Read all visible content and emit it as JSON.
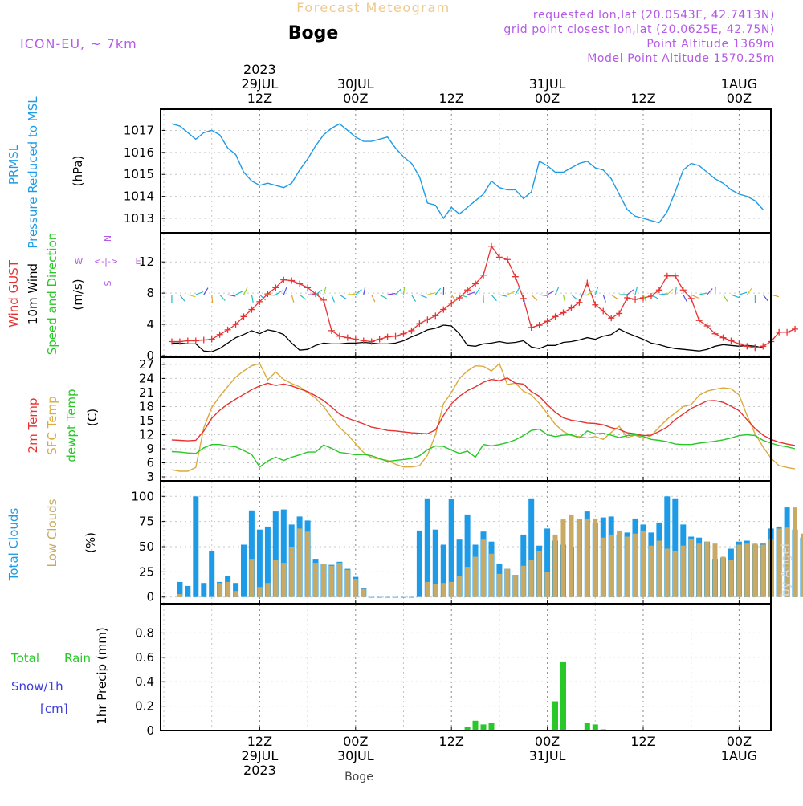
{
  "header": {
    "forecast_title": "Forecast Meteogram",
    "station": "Boge",
    "model": "ICON-EU, ~ 7km",
    "requested": "requested lon,lat (20.0543E, 42.7413N)",
    "grid_point": "grid point closest lon,lat (20.0625E, 42.75N)",
    "point_alt": "Point Altitude 1369m",
    "model_alt": "Model Point Altitude 1570.25m"
  },
  "time_axis": {
    "start": "2023-07-29T01Z",
    "step_hours": 1,
    "end": "2023-08-01T08Z",
    "ticks": [
      {
        "hour": 11,
        "time": "12Z",
        "date": "29JUL",
        "year": "2023"
      },
      {
        "hour": 23,
        "time": "00Z",
        "date": "30JUL",
        "year": ""
      },
      {
        "hour": 35,
        "time": "12Z",
        "date": "",
        "year": ""
      },
      {
        "hour": 47,
        "time": "00Z",
        "date": "31JUL",
        "year": ""
      },
      {
        "hour": 59,
        "time": "12Z",
        "date": "",
        "year": ""
      },
      {
        "hour": 71,
        "time": "00Z",
        "date": "1AUG",
        "year": ""
      }
    ],
    "footer_label": "Boge"
  },
  "labels": {
    "p1": [
      "PRMSL",
      "Pressure Reduced to MSL",
      "(hPa)"
    ],
    "p2": [
      "Wind GUST",
      "10m Wind",
      "Speed and Direction",
      "(m/s)"
    ],
    "p2_compass": [
      "N",
      "W",
      "<-|->",
      "E",
      "S"
    ],
    "p3": [
      "2m Temp",
      "SFC Temp",
      "dewpt Temp",
      "(C)"
    ],
    "p4": [
      "Total Clouds",
      "Low Clouds",
      "(%)"
    ],
    "p5": [
      "Total",
      "Rain",
      "Snow/1h",
      "[cm]",
      "1hr Precip (mm)"
    ],
    "watermark": "by Angel"
  },
  "colors": {
    "pressure": "#1e9be6",
    "gust": "#e83232",
    "wind10": "#000000",
    "t2m": "#e83232",
    "tsfc": "#dcaa3c",
    "dewpt": "#28c828",
    "total_clouds": "#1e9be6",
    "low_clouds": "#c8aa64",
    "rain": "#28c828",
    "snow_label": "#3c3cdc",
    "purple": "#b45ae6",
    "cyan_label": "#1e9be6",
    "title_orange": "#f0c88c"
  },
  "chart_data": [
    {
      "type": "line",
      "title": "PRMSL Pressure Reduced to MSL",
      "ylabel": "(hPa)",
      "ylim": [
        1012.6,
        1017.6
      ],
      "yticks": [
        1013,
        1014,
        1015,
        1016,
        1017
      ],
      "series": [
        {
          "name": "PRMSL",
          "x_start_hour": 0,
          "values": [
            1017.3,
            1017.2,
            1016.9,
            1016.6,
            1016.9,
            1017.0,
            1016.8,
            1016.2,
            1015.9,
            1015.1,
            1014.7,
            1014.5,
            1014.6,
            1014.5,
            1014.4,
            1014.6,
            1015.2,
            1015.7,
            1016.3,
            1016.8,
            1017.1,
            1017.3,
            1017.0,
            1016.7,
            1016.5,
            1016.5,
            1016.6,
            1016.7,
            1016.2,
            1015.8,
            1015.5,
            1014.9,
            1013.7,
            1013.6,
            1013.0,
            1013.5,
            1013.2,
            1013.5,
            1013.8,
            1014.1,
            1014.7,
            1014.4,
            1014.3,
            1014.3,
            1013.9,
            1014.2,
            1015.6,
            1015.4,
            1015.1,
            1015.1,
            1015.3,
            1015.5,
            1015.6,
            1015.3,
            1015.2,
            1014.8,
            1014.1,
            1013.4,
            1013.1,
            1013.0,
            1012.9,
            1012.8,
            1013.3,
            1014.2,
            1015.2,
            1015.5,
            1015.4,
            1015.1,
            1014.8,
            1014.6,
            1014.3,
            1014.1,
            1014.0,
            1013.8,
            1013.4
          ]
        }
      ]
    },
    {
      "type": "line",
      "title": "Wind GUST / 10m Wind Speed and Direction",
      "ylabel": "(m/s)",
      "ylim": [
        0,
        15
      ],
      "yticks": [
        0,
        4,
        8,
        12
      ],
      "series": [
        {
          "name": "Wind GUST",
          "x_start_hour": 0,
          "values": [
            1.8,
            1.8,
            1.9,
            1.9,
            2.0,
            2.1,
            2.7,
            3.3,
            4.0,
            5.0,
            5.9,
            6.9,
            7.9,
            8.7,
            9.7,
            9.6,
            9.2,
            8.7,
            7.9,
            7.1,
            3.2,
            2.5,
            2.3,
            2.1,
            1.9,
            1.8,
            2.1,
            2.4,
            2.5,
            2.8,
            3.2,
            4.1,
            4.6,
            5.1,
            5.9,
            6.7,
            7.4,
            8.4,
            9.2,
            10.3,
            14.0,
            12.6,
            12.3,
            10.1,
            7.3,
            3.6,
            3.9,
            4.4,
            5.0,
            5.5,
            6.1,
            6.8,
            9.3,
            6.5,
            5.7,
            4.8,
            5.4,
            7.4,
            7.2,
            7.4,
            7.6,
            8.4,
            10.2,
            10.2,
            8.4,
            7.3,
            4.5,
            3.8,
            2.8,
            2.3,
            1.9,
            1.5,
            1.2,
            1.0,
            1.2,
            1.8,
            3.0,
            3.0,
            3.4
          ]
        },
        {
          "name": "10m Wind",
          "x_start_hour": 0,
          "values": [
            1.6,
            1.6,
            1.5,
            1.5,
            0.6,
            0.5,
            0.9,
            1.6,
            2.3,
            2.7,
            3.2,
            2.8,
            3.3,
            3.1,
            2.7,
            1.6,
            0.7,
            0.8,
            1.3,
            1.6,
            1.5,
            1.5,
            1.6,
            1.6,
            1.7,
            1.6,
            1.5,
            1.5,
            1.6,
            1.9,
            2.4,
            2.8,
            3.3,
            3.5,
            3.9,
            3.8,
            2.8,
            1.3,
            1.2,
            1.5,
            1.6,
            1.8,
            1.6,
            1.7,
            1.9,
            1.1,
            0.9,
            1.3,
            1.3,
            1.7,
            1.8,
            2.0,
            2.3,
            2.1,
            2.5,
            2.7,
            3.4,
            2.9,
            2.5,
            2.1,
            1.6,
            1.4,
            1.1,
            0.9,
            0.8,
            0.7,
            0.6,
            0.8,
            1.2,
            1.4,
            1.3,
            1.2,
            1.3,
            1.2,
            1.0
          ]
        }
      ]
    },
    {
      "type": "line",
      "title": "2m Temp / SFC Temp / dewpt Temp",
      "ylabel": "(C)",
      "ylim": [
        3,
        27.5
      ],
      "yticks": [
        3,
        6,
        9,
        12,
        15,
        18,
        21,
        24,
        27
      ],
      "series": [
        {
          "name": "2m Temp",
          "x_start_hour": 0,
          "values": [
            10.9,
            10.8,
            10.7,
            10.8,
            12.8,
            15.5,
            17.2,
            18.5,
            19.6,
            20.6,
            21.6,
            22.4,
            23.0,
            22.5,
            22.8,
            22.4,
            21.8,
            21.2,
            20.3,
            19.3,
            17.9,
            16.4,
            15.5,
            14.9,
            14.3,
            13.6,
            13.3,
            12.9,
            12.8,
            12.6,
            12.4,
            12.3,
            12.2,
            13.0,
            16.1,
            18.6,
            20.2,
            21.4,
            22.2,
            23.2,
            23.8,
            23.5,
            24.1,
            23.0,
            22.8,
            21.2,
            20.2,
            18.4,
            16.8,
            15.6,
            15.1,
            14.8,
            14.5,
            14.4,
            14.1,
            13.5,
            13.1,
            12.4,
            12.2,
            11.8,
            11.9,
            12.7,
            13.6,
            15.2,
            16.4,
            17.6,
            18.4,
            19.2,
            19.3,
            18.9,
            18.1,
            17.1,
            15.2,
            13.3,
            11.9,
            11.0,
            10.4,
            10.0,
            9.7
          ]
        },
        {
          "name": "SFC Temp",
          "x_start_hour": 0,
          "values": [
            4.5,
            4.2,
            4.2,
            5.0,
            13.5,
            17.8,
            20.2,
            22.3,
            24.3,
            25.6,
            26.7,
            27.2,
            23.7,
            25.4,
            23.8,
            22.9,
            22.2,
            21.0,
            19.8,
            18.0,
            15.7,
            13.5,
            12.0,
            10.1,
            8.2,
            7.1,
            6.8,
            6.5,
            5.7,
            5.1,
            5.1,
            5.4,
            7.6,
            12.0,
            18.6,
            21.0,
            24.0,
            25.6,
            26.7,
            26.6,
            25.6,
            27.2,
            22.7,
            23.0,
            21.3,
            20.5,
            18.7,
            16.5,
            14.2,
            12.7,
            11.8,
            11.6,
            11.3,
            11.6,
            11.0,
            12.5,
            13.8,
            11.4,
            11.9,
            11.2,
            11.8,
            13.6,
            15.3,
            16.6,
            18.0,
            18.4,
            20.4,
            21.3,
            21.7,
            22.0,
            21.8,
            20.5,
            16.1,
            12.2,
            9.4,
            7.0,
            5.4,
            5.0,
            4.7
          ]
        },
        {
          "name": "dewpt Temp",
          "x_start_hour": 0,
          "values": [
            8.4,
            8.3,
            8.1,
            8.0,
            9.2,
            9.9,
            9.9,
            9.6,
            9.4,
            8.6,
            7.8,
            5.1,
            6.4,
            7.2,
            6.5,
            7.2,
            7.7,
            8.3,
            8.3,
            9.8,
            9.1,
            8.2,
            8.0,
            7.7,
            7.8,
            7.5,
            6.9,
            6.3,
            6.5,
            6.7,
            6.9,
            7.5,
            8.8,
            9.6,
            9.5,
            8.7,
            8.0,
            8.5,
            7.2,
            9.9,
            9.6,
            9.9,
            10.3,
            10.9,
            11.8,
            12.9,
            13.2,
            12.0,
            11.6,
            11.9,
            12.0,
            11.3,
            12.8,
            12.2,
            12.3,
            11.9,
            11.4,
            11.8,
            12.0,
            11.6,
            11.0,
            10.8,
            10.5,
            10.0,
            9.9,
            9.9,
            10.2,
            10.4,
            10.6,
            10.9,
            11.3,
            11.8,
            12.0,
            11.8,
            10.8,
            10.2,
            9.7,
            9.4,
            9.0
          ]
        }
      ]
    },
    {
      "type": "bar",
      "title": "Total Clouds / Low Clouds",
      "ylabel": "(%)",
      "ylim": [
        -5,
        105
      ],
      "yticks": [
        0,
        25,
        50,
        75,
        100
      ],
      "series": [
        {
          "name": "Total Clouds",
          "x_start_hour": 1,
          "values": [
            15,
            11,
            100,
            14,
            46,
            15,
            21,
            14,
            52,
            86,
            67,
            70,
            85,
            87,
            72,
            80,
            76,
            38,
            33,
            32,
            35,
            28,
            20,
            9,
            0,
            0,
            0,
            0,
            0,
            0,
            66,
            98,
            67,
            52,
            97,
            57,
            82,
            52,
            65,
            55,
            33,
            28,
            22,
            62,
            98,
            51,
            68,
            56,
            52,
            50,
            77,
            85,
            73,
            79,
            80,
            62,
            64,
            78,
            72,
            64,
            74,
            100,
            98,
            72,
            60,
            59,
            55,
            38,
            39,
            48,
            55,
            56,
            52,
            53,
            68,
            70,
            89,
            67,
            59
          ]
        },
        {
          "name": "Low Clouds",
          "x_start_hour": 1,
          "values": [
            3,
            0,
            0,
            0,
            0,
            14,
            15,
            6,
            0,
            38,
            10,
            14,
            37,
            34,
            50,
            68,
            65,
            34,
            33,
            31,
            34,
            27,
            18,
            8,
            0,
            0,
            0,
            0,
            0,
            0,
            0,
            15,
            13,
            14,
            15,
            21,
            30,
            40,
            57,
            43,
            23,
            28,
            22,
            31,
            37,
            46,
            25,
            62,
            77,
            82,
            77,
            78,
            78,
            59,
            62,
            66,
            60,
            63,
            66,
            51,
            56,
            48,
            46,
            51,
            58,
            53,
            55,
            53,
            40,
            37,
            52,
            53,
            53,
            52,
            57,
            68,
            69,
            89,
            63
          ]
        }
      ]
    },
    {
      "type": "bar",
      "title": "1hr Precip",
      "ylabel": "1hr Precip (mm)",
      "ylim": [
        0,
        1.0
      ],
      "yticks": [
        0,
        0.2,
        0.4,
        0.6,
        0.8
      ],
      "series": [
        {
          "name": "Total Rain",
          "x_start_hour": 1,
          "values": [
            0,
            0,
            0,
            0,
            0,
            0,
            0,
            0,
            0,
            0,
            0,
            0,
            0,
            0,
            0,
            0,
            0,
            0,
            0,
            0,
            0,
            0,
            0,
            0,
            0,
            0,
            0,
            0,
            0,
            0,
            0,
            0,
            0,
            0,
            0,
            0,
            0.03,
            0.08,
            0.05,
            0.06,
            0,
            0,
            0,
            0,
            0,
            0,
            0,
            0.24,
            0.56,
            0,
            0,
            0.06,
            0.05,
            0.01,
            0,
            0,
            0,
            0,
            0,
            0,
            0,
            0,
            0,
            0,
            0,
            0,
            0,
            0,
            0,
            0,
            0,
            0,
            0,
            0,
            0,
            0,
            0,
            0
          ]
        }
      ]
    }
  ]
}
